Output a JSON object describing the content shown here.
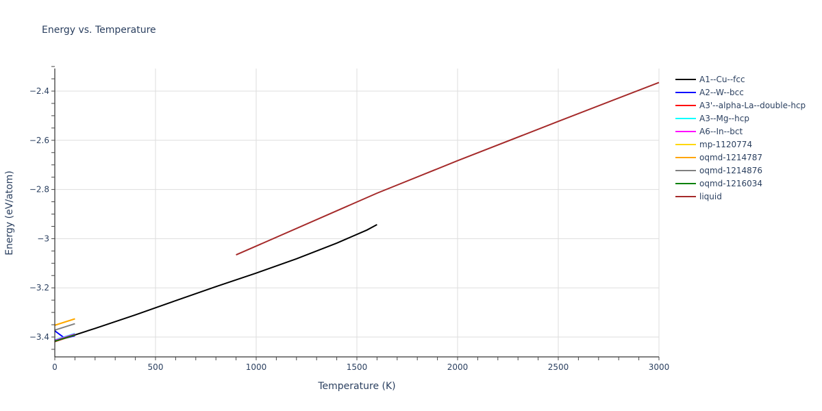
{
  "title": "Energy vs. Temperature",
  "chart_data": {
    "type": "line",
    "title": "Energy vs. Temperature",
    "xlabel": "Temperature (K)",
    "ylabel": "Energy (eV/atom)",
    "xlim": [
      0,
      3000
    ],
    "ylim": [
      -3.47,
      -2.3
    ],
    "x_ticks": [
      0,
      500,
      1000,
      1500,
      2000,
      2500,
      3000
    ],
    "x_tick_labels": [
      "0",
      "500",
      "1000",
      "1500",
      "2000",
      "2500",
      "3000"
    ],
    "y_ticks": [
      -3.4,
      -3.2,
      -3.0,
      -2.8,
      -2.6,
      -2.4
    ],
    "y_tick_labels": [
      "−3.4",
      "−3.2",
      "−3",
      "−2.8",
      "−2.6",
      "−2.4"
    ],
    "grid": true,
    "legend_position": "right",
    "series": [
      {
        "name": "A1--Cu--fcc",
        "color": "#000000",
        "x": [
          0,
          200,
          400,
          600,
          800,
          1000,
          1200,
          1400,
          1550,
          1600
        ],
        "y": [
          -3.418,
          -3.365,
          -3.31,
          -3.252,
          -3.195,
          -3.14,
          -3.082,
          -3.018,
          -2.965,
          -2.943
        ]
      },
      {
        "name": "A2--W--bcc",
        "color": "#0000ff",
        "x": [
          0,
          50,
          100
        ],
        "y": [
          -3.375,
          -3.405,
          -3.395
        ]
      },
      {
        "name": "A3'--alpha-La--double-hcp",
        "color": "#ff0000",
        "x": [
          0,
          100
        ],
        "y": [
          -3.418,
          -3.392
        ]
      },
      {
        "name": "A3--Mg--hcp",
        "color": "#00ffff",
        "x": [
          0,
          100
        ],
        "y": [
          -3.412,
          -3.386
        ]
      },
      {
        "name": "A6--In--bct",
        "color": "#ff00ff",
        "x": [
          0,
          100
        ],
        "y": [
          -3.414,
          -3.388
        ]
      },
      {
        "name": "mp-1120774",
        "color": "#ffd700",
        "x": [
          0,
          100
        ],
        "y": [
          -3.352,
          -3.326
        ]
      },
      {
        "name": "oqmd-1214787",
        "color": "#ffa500",
        "x": [
          0,
          100
        ],
        "y": [
          -3.352,
          -3.326
        ]
      },
      {
        "name": "oqmd-1214876",
        "color": "#808080",
        "x": [
          0,
          100
        ],
        "y": [
          -3.372,
          -3.346
        ]
      },
      {
        "name": "oqmd-1216034",
        "color": "#008000",
        "x": [
          0,
          100
        ],
        "y": [
          -3.417,
          -3.391
        ]
      },
      {
        "name": "liquid",
        "color": "#a52a2a",
        "x": [
          900,
          1600,
          2000,
          2500,
          3000
        ],
        "y": [
          -3.066,
          -2.815,
          -2.683,
          -2.523,
          -2.365
        ]
      }
    ]
  }
}
